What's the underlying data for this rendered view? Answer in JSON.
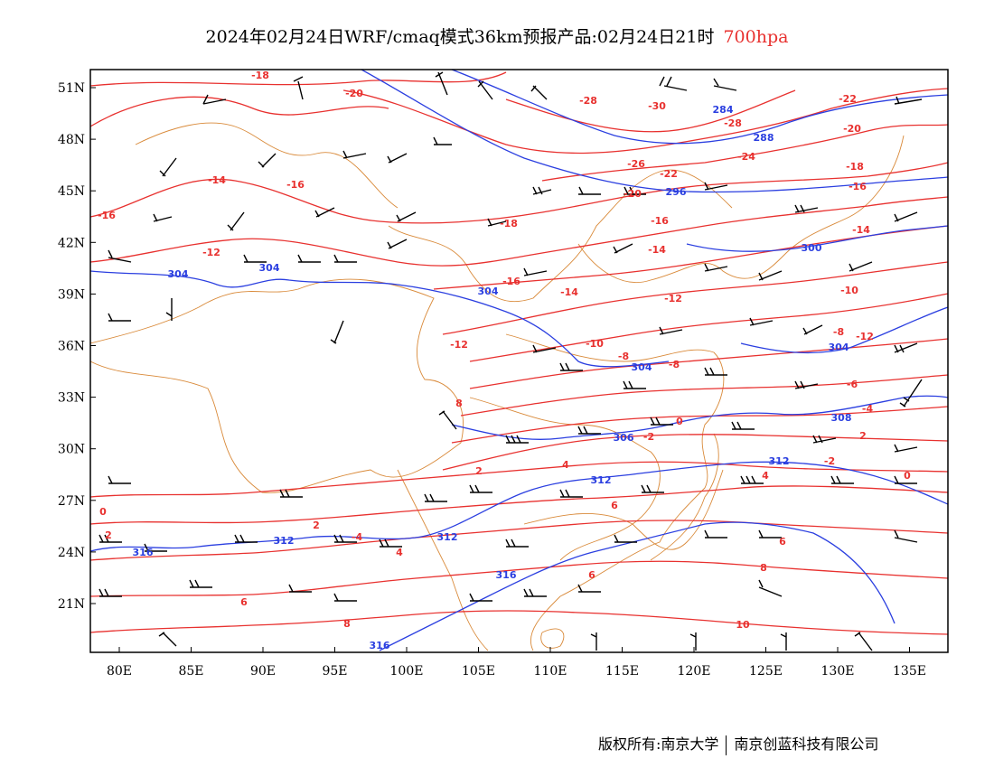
{
  "title": {
    "main": "2024年02月24日WRF/cmaq模式36km预报产品:02月24日21时",
    "level": "700hpa"
  },
  "axes": {
    "lon_ticks": [
      "80E",
      "85E",
      "90E",
      "95E",
      "100E",
      "105E",
      "110E",
      "115E",
      "120E",
      "125E",
      "130E",
      "135E"
    ],
    "lat_ticks": [
      "51N",
      "48N",
      "45N",
      "42N",
      "39N",
      "36N",
      "33N",
      "30N",
      "27N",
      "24N",
      "21N"
    ]
  },
  "colors": {
    "geopotential": "#2b3fe0",
    "temperature": "#e8312f",
    "borders": "#d98a3a",
    "barbs": "#000000"
  },
  "geopotential_labels": [
    "284",
    "288",
    "296",
    "300",
    "304",
    "304",
    "304",
    "304",
    "304",
    "306",
    "308",
    "312",
    "312",
    "312",
    "312",
    "316",
    "316",
    "316"
  ],
  "temperature_labels": [
    "-18",
    "-20",
    "-28",
    "-30",
    "-28",
    "-26",
    "-24",
    "-22",
    "-22",
    "-20",
    "-20",
    "-18",
    "-18",
    "-16",
    "-16",
    "-16",
    "-16",
    "-16",
    "-14",
    "-14",
    "-14",
    "-14",
    "-12",
    "-12",
    "-12",
    "-12",
    "-10",
    "-10",
    "-8",
    "-8",
    "-8",
    "-6",
    "-4",
    "-4",
    "-2",
    "-2",
    "0",
    "0",
    "0",
    "2",
    "2",
    "2",
    "2",
    "4",
    "4",
    "4",
    "6",
    "6",
    "6",
    "6",
    "8",
    "8",
    "8",
    "10"
  ],
  "footer": {
    "left": "版权所有:南京大学",
    "right": "南京创蓝科技有限公司"
  }
}
